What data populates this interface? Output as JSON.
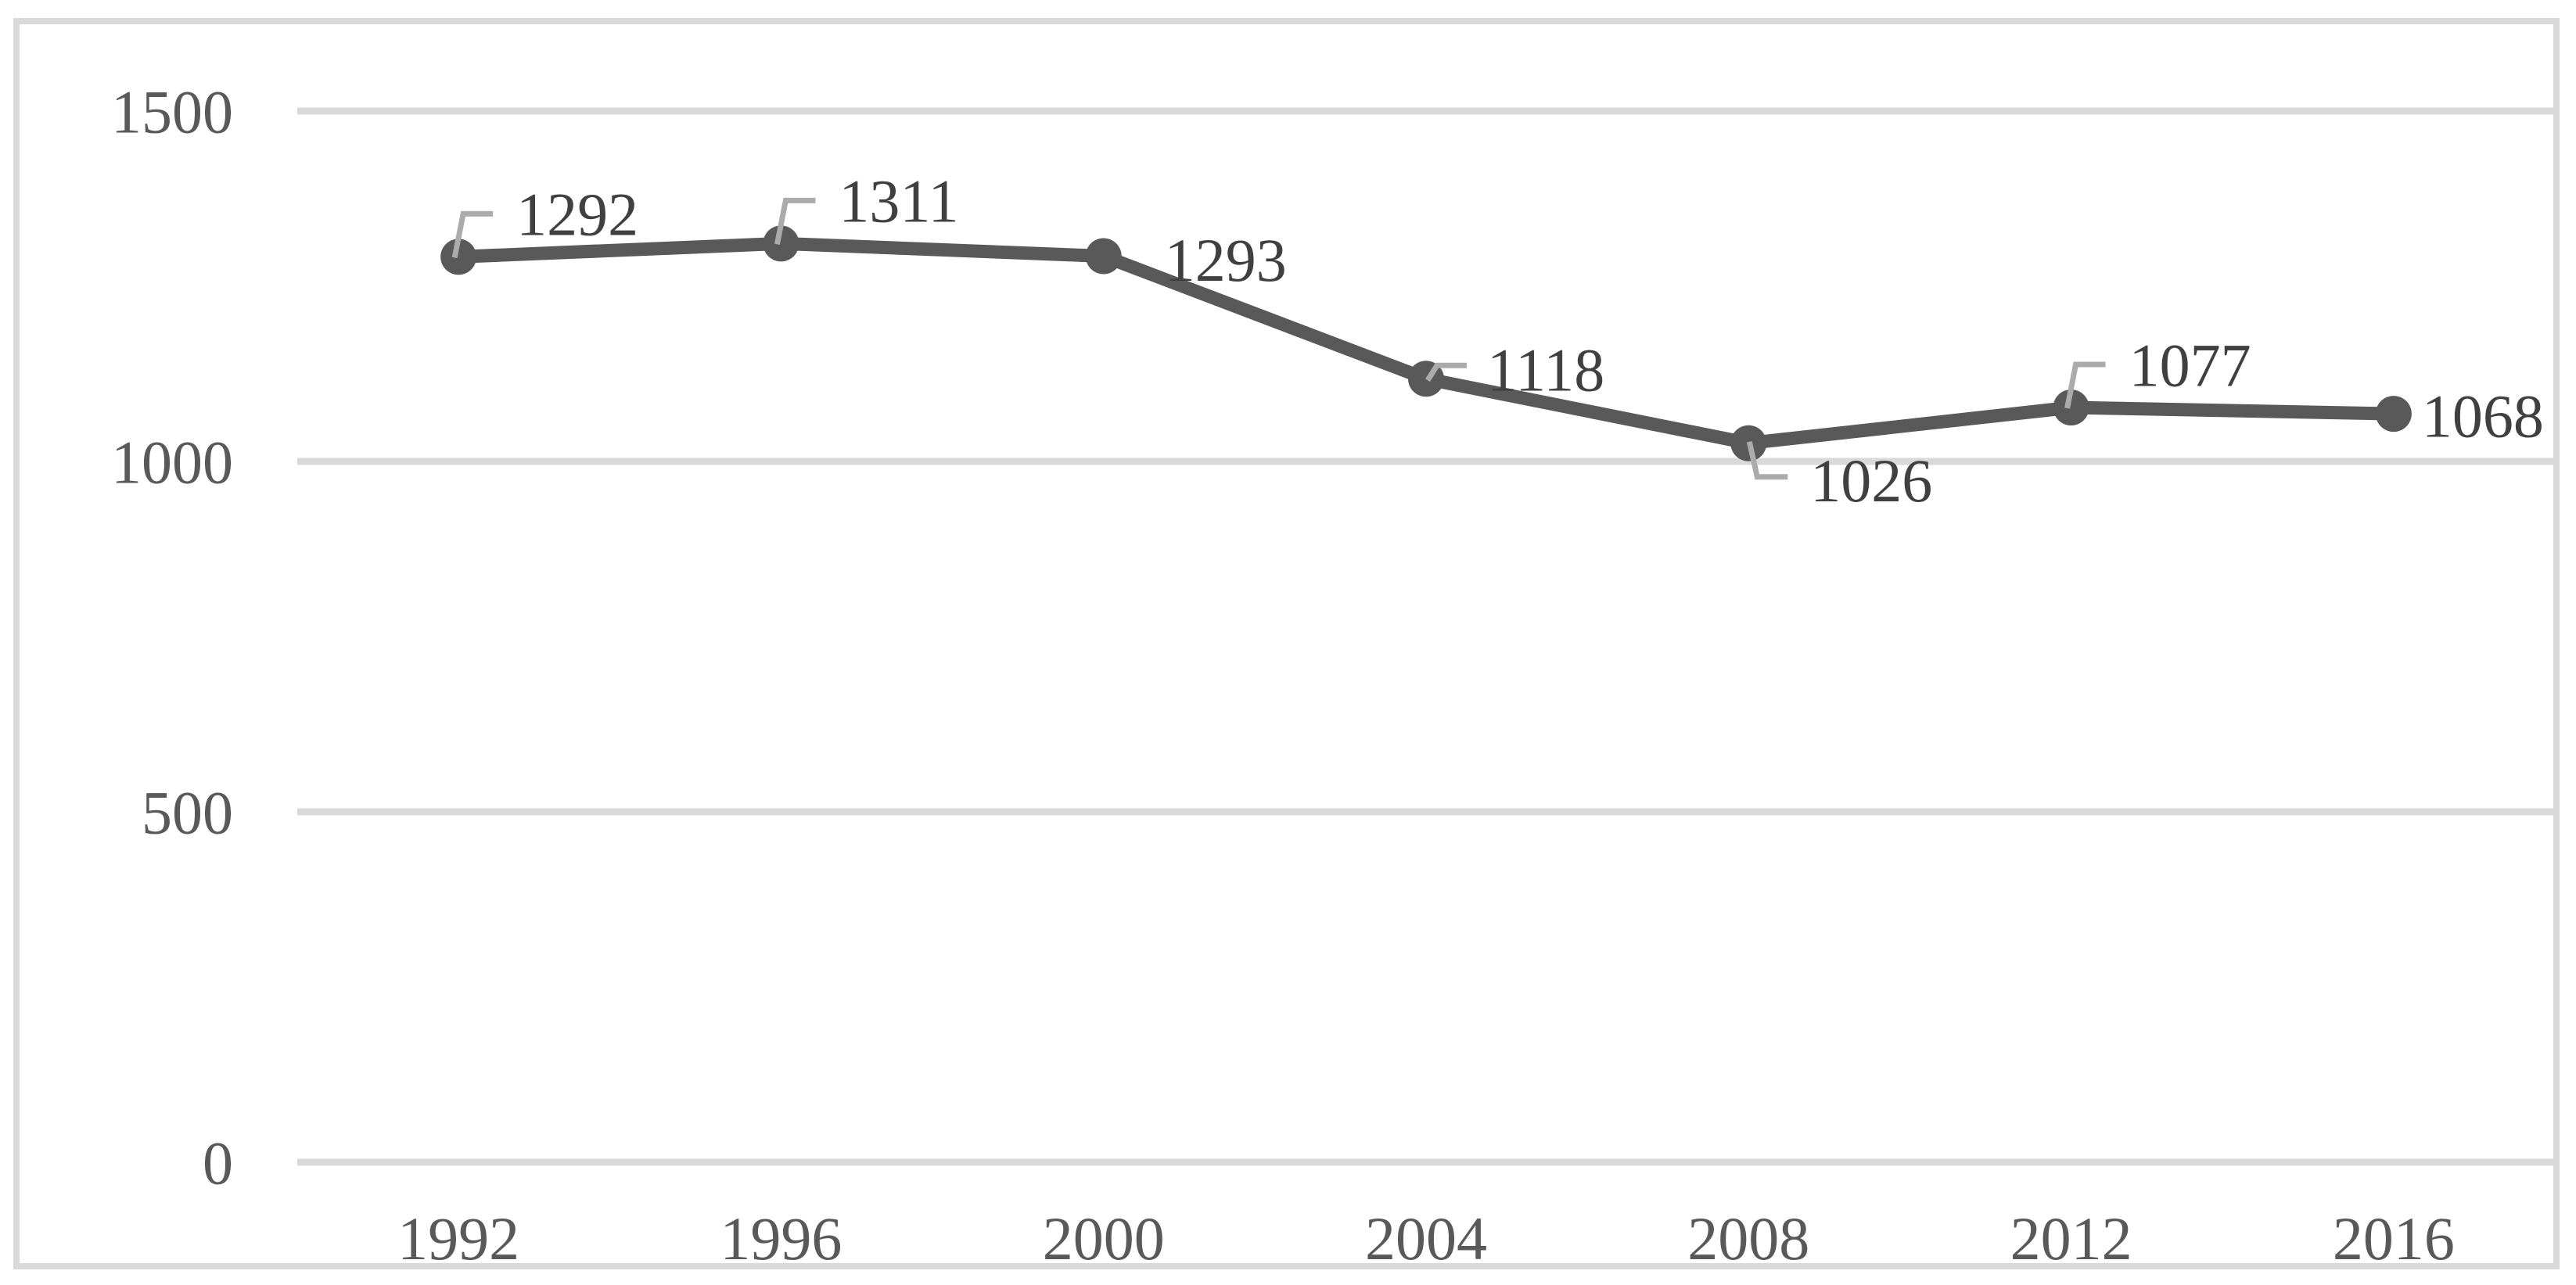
{
  "chart_data": {
    "type": "line",
    "x": [
      "1992",
      "1996",
      "2000",
      "2004",
      "2008",
      "2012",
      "2016"
    ],
    "series": [
      {
        "name": "series-1",
        "values": [
          1292,
          1311,
          1293,
          1118,
          1026,
          1077,
          1068
        ],
        "data_labels": [
          "1292",
          "1311",
          "1293",
          "1118",
          "1026",
          "1077",
          "1068"
        ],
        "label_placements": [
          "callout-above",
          "callout-above",
          "right",
          "callout-upper-right",
          "callout-below",
          "callout-above",
          "right-near"
        ]
      }
    ],
    "title": "",
    "xlabel": "",
    "ylabel": "",
    "ylim": [
      0,
      1500
    ],
    "yticks": [
      0,
      500,
      1000,
      1500
    ],
    "ytick_labels": [
      "0",
      "500",
      "1000",
      "1500"
    ],
    "grid": "horizontal-only",
    "legend_position": "none",
    "markers": "filled-circle",
    "colors": {
      "line": "#595959",
      "marker": "#595959",
      "data_label_text": "#404040",
      "axis_label_text": "#595959",
      "gridline": "#D9D9D9",
      "frame_border": "#D9D9D9",
      "leader_line": "#ABABAB",
      "background": "#FFFFFF"
    }
  }
}
